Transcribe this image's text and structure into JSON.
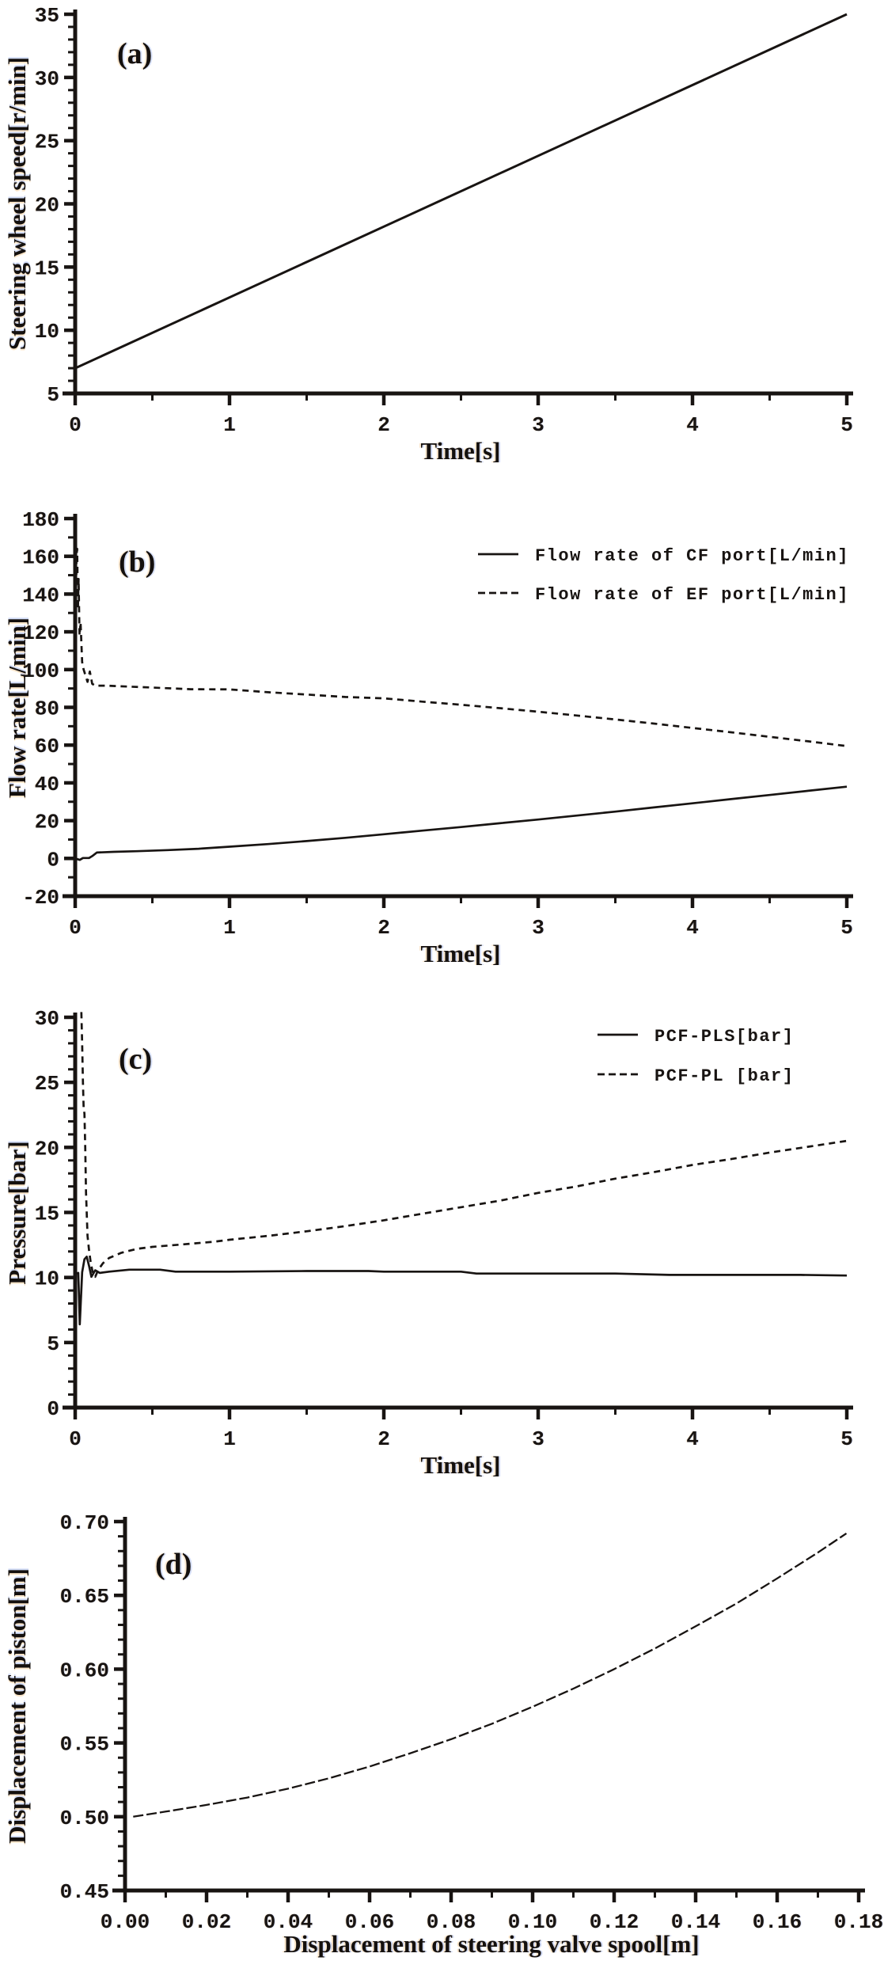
{
  "figure": {
    "background": "#ffffff",
    "ink": "#181412"
  },
  "chart_data": [
    {
      "type": "line",
      "panel_label": "(a)",
      "xlabel": "Time[s]",
      "ylabel": "Steering wheel speed[r/min]",
      "xlim": [
        0,
        5
      ],
      "ylim": [
        5,
        35
      ],
      "x_major_step": 1,
      "x_minor_step": 0.5,
      "y_major_step": 5,
      "y_minor_step": 1,
      "x_tick_labels": [
        "0",
        "1",
        "2",
        "3",
        "4",
        "5"
      ],
      "y_tick_labels": [
        "5",
        "10",
        "15",
        "20",
        "25",
        "30",
        "35"
      ],
      "grid": false,
      "legend": [],
      "series": [
        {
          "name": "Steering wheel speed",
          "style": "solid",
          "points": [
            [
              0,
              7.0
            ],
            [
              5,
              35.0
            ]
          ]
        }
      ]
    },
    {
      "type": "line",
      "panel_label": "(b)",
      "xlabel": "Time[s]",
      "ylabel": "Flow rate[L/min]",
      "xlim": [
        0,
        5
      ],
      "ylim": [
        -20,
        180
      ],
      "x_major_step": 1,
      "x_minor_step": 0.5,
      "y_major_step": 20,
      "y_minor_step": 10,
      "x_tick_labels": [
        "0",
        "1",
        "2",
        "3",
        "4",
        "5"
      ],
      "y_tick_labels": [
        "-20",
        "0",
        "20",
        "40",
        "60",
        "80",
        "100",
        "120",
        "140",
        "160",
        "180"
      ],
      "grid": false,
      "legend": [
        {
          "style": "solid",
          "label": "Flow rate of CF port[L/min]"
        },
        {
          "style": "dashed",
          "label": "Flow rate of EF port[L/min]"
        }
      ],
      "series": [
        {
          "name": "Flow rate of CF port",
          "style": "solid",
          "points": [
            [
              0,
              0
            ],
            [
              0.03,
              -0.8
            ],
            [
              0.05,
              0.2
            ],
            [
              0.09,
              0.2
            ],
            [
              0.11,
              1.2
            ],
            [
              0.14,
              3.1
            ],
            [
              0.25,
              3.5
            ],
            [
              0.4,
              3.8
            ],
            [
              0.6,
              4.4
            ],
            [
              0.8,
              5.1
            ],
            [
              1.0,
              6.2
            ],
            [
              1.25,
              7.6
            ],
            [
              1.5,
              9.2
            ],
            [
              1.75,
              10.9
            ],
            [
              2.0,
              12.8
            ],
            [
              2.25,
              14.7
            ],
            [
              2.5,
              16.6
            ],
            [
              2.75,
              18.6
            ],
            [
              3.0,
              20.6
            ],
            [
              3.25,
              22.7
            ],
            [
              3.5,
              24.8
            ],
            [
              3.75,
              27.0
            ],
            [
              4.0,
              29.2
            ],
            [
              4.25,
              31.4
            ],
            [
              4.5,
              33.6
            ],
            [
              4.75,
              35.8
            ],
            [
              5.0,
              38.0
            ]
          ]
        },
        {
          "name": "Flow rate of EF port",
          "style": "dashed",
          "points": [
            [
              0,
              62
            ],
            [
              0.008,
              160
            ],
            [
              0.013,
              164
            ],
            [
              0.018,
              132
            ],
            [
              0.022,
              148
            ],
            [
              0.028,
              118
            ],
            [
              0.035,
              125
            ],
            [
              0.045,
              104
            ],
            [
              0.055,
              100
            ],
            [
              0.07,
              96
            ],
            [
              0.08,
              93.5
            ],
            [
              0.095,
              99
            ],
            [
              0.11,
              92.5
            ],
            [
              0.13,
              91.5
            ],
            [
              0.2,
              91.5
            ],
            [
              0.35,
              91
            ],
            [
              0.5,
              90.5
            ],
            [
              0.75,
              89.6
            ],
            [
              1.0,
              89.5
            ],
            [
              1.25,
              88
            ],
            [
              1.5,
              86.8
            ],
            [
              1.75,
              85.5
            ],
            [
              2.0,
              84.8
            ],
            [
              2.25,
              83
            ],
            [
              2.5,
              81.4
            ],
            [
              2.75,
              79.6
            ],
            [
              3.0,
              77.7
            ],
            [
              3.25,
              75.7
            ],
            [
              3.5,
              73.6
            ],
            [
              3.75,
              71.4
            ],
            [
              4.0,
              69.1
            ],
            [
              4.25,
              66.8
            ],
            [
              4.5,
              64.4
            ],
            [
              4.75,
              62
            ],
            [
              5.0,
              59.5
            ]
          ]
        }
      ]
    },
    {
      "type": "line",
      "panel_label": "(c)",
      "xlabel": "Time[s]",
      "ylabel": "Pressure[bar]",
      "xlim": [
        0,
        5
      ],
      "ylim": [
        0,
        30
      ],
      "x_major_step": 1,
      "x_minor_step": 0.5,
      "y_major_step": 5,
      "y_minor_step": 1,
      "x_tick_labels": [
        "0",
        "1",
        "2",
        "3",
        "4",
        "5"
      ],
      "y_tick_labels": [
        "0",
        "5",
        "10",
        "15",
        "20",
        "25",
        "30"
      ],
      "grid": false,
      "legend": [
        {
          "style": "solid",
          "label": "PCF-PLS[bar]"
        },
        {
          "style": "dashed",
          "label": "PCF-PL [bar]"
        }
      ],
      "series": [
        {
          "name": "PCF-PLS",
          "style": "solid",
          "points": [
            [
              0,
              10.3
            ],
            [
              0.02,
              10.35
            ],
            [
              0.03,
              6.4
            ],
            [
              0.045,
              10.4
            ],
            [
              0.06,
              11.4
            ],
            [
              0.075,
              11.6
            ],
            [
              0.09,
              10.9
            ],
            [
              0.105,
              10.05
            ],
            [
              0.13,
              10.55
            ],
            [
              0.16,
              10.35
            ],
            [
              0.22,
              10.45
            ],
            [
              0.35,
              10.6
            ],
            [
              0.55,
              10.6
            ],
            [
              0.65,
              10.45
            ],
            [
              1.0,
              10.45
            ],
            [
              1.5,
              10.5
            ],
            [
              1.9,
              10.5
            ],
            [
              2.0,
              10.45
            ],
            [
              2.5,
              10.45
            ],
            [
              2.6,
              10.3
            ],
            [
              3.0,
              10.3
            ],
            [
              3.5,
              10.3
            ],
            [
              3.85,
              10.2
            ],
            [
              4.3,
              10.2
            ],
            [
              4.7,
              10.2
            ],
            [
              5.0,
              10.15
            ]
          ]
        },
        {
          "name": "PCF-PL",
          "style": "dashed",
          "points": [
            [
              0.04,
              30.4
            ],
            [
              0.045,
              28
            ],
            [
              0.05,
              25
            ],
            [
              0.055,
              23
            ],
            [
              0.06,
              22.6
            ],
            [
              0.065,
              20
            ],
            [
              0.07,
              16.5
            ],
            [
              0.08,
              13.2
            ],
            [
              0.09,
              12.1
            ],
            [
              0.1,
              11.2
            ],
            [
              0.115,
              10.3
            ],
            [
              0.13,
              10.05
            ],
            [
              0.15,
              10.6
            ],
            [
              0.18,
              11.1
            ],
            [
              0.22,
              11.5
            ],
            [
              0.3,
              11.9
            ],
            [
              0.4,
              12.2
            ],
            [
              0.5,
              12.35
            ],
            [
              0.7,
              12.55
            ],
            [
              0.9,
              12.75
            ],
            [
              1.0,
              12.9
            ],
            [
              1.25,
              13.2
            ],
            [
              1.5,
              13.55
            ],
            [
              1.75,
              13.95
            ],
            [
              2.0,
              14.4
            ],
            [
              2.25,
              14.9
            ],
            [
              2.5,
              15.4
            ],
            [
              2.75,
              15.9
            ],
            [
              3.0,
              16.5
            ],
            [
              3.25,
              17.0
            ],
            [
              3.5,
              17.6
            ],
            [
              3.75,
              18.1
            ],
            [
              4.0,
              18.65
            ],
            [
              4.25,
              19.1
            ],
            [
              4.5,
              19.6
            ],
            [
              4.75,
              20.05
            ],
            [
              5.0,
              20.5
            ]
          ]
        }
      ]
    },
    {
      "type": "line",
      "panel_label": "(d)",
      "xlabel": "Displacement of steering valve spool[m]",
      "ylabel": "Displacement of piston[m]",
      "xlim": [
        0,
        0.18
      ],
      "ylim": [
        0.45,
        0.7
      ],
      "x_major_step": 0.02,
      "x_minor_step": 0.01,
      "y_major_step": 0.05,
      "y_minor_step": 0.01,
      "x_tick_labels": [
        "0.00",
        "0.02",
        "0.04",
        "0.06",
        "0.08",
        "0.10",
        "0.12",
        "0.14",
        "0.16",
        "0.18"
      ],
      "y_tick_labels": [
        "0.45",
        "0.50",
        "0.55",
        "0.60",
        "0.65",
        "0.70"
      ],
      "grid": false,
      "legend": [],
      "series": [
        {
          "name": "Displacement of piston",
          "style": "dashed",
          "points": [
            [
              0.002,
              0.5
            ],
            [
              0.01,
              0.5035
            ],
            [
              0.02,
              0.508
            ],
            [
              0.03,
              0.513
            ],
            [
              0.04,
              0.519
            ],
            [
              0.05,
              0.526
            ],
            [
              0.06,
              0.534
            ],
            [
              0.07,
              0.543
            ],
            [
              0.08,
              0.5525
            ],
            [
              0.09,
              0.563
            ],
            [
              0.1,
              0.5745
            ],
            [
              0.11,
              0.5868
            ],
            [
              0.12,
              0.6
            ],
            [
              0.13,
              0.614
            ],
            [
              0.14,
              0.629
            ],
            [
              0.15,
              0.6445
            ],
            [
              0.16,
              0.6615
            ],
            [
              0.17,
              0.679
            ],
            [
              0.177,
              0.692
            ]
          ]
        }
      ]
    }
  ]
}
